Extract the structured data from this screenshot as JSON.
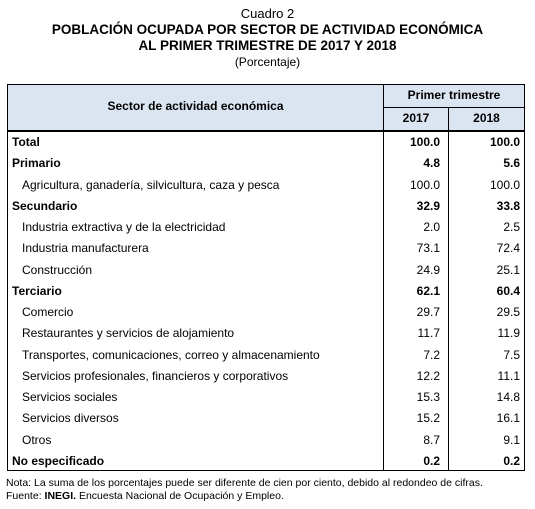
{
  "header": {
    "label": "Cuadro 2",
    "title_line1": "POBLACIÓN OCUPADA POR SECTOR DE ACTIVIDAD ECONÓMICA",
    "title_line2": "AL PRIMER TRIMESTRE DE 2017 Y 2018",
    "subtitle": "(Porcentaje)"
  },
  "table": {
    "column_header": "Sector de actividad económica",
    "group_header": "Primer trimestre",
    "years": [
      "2017",
      "2018"
    ],
    "rows": [
      {
        "label": "Total",
        "bold": true,
        "values": [
          "100.0",
          "100.0"
        ]
      },
      {
        "label": "Primario",
        "bold": true,
        "values": [
          "4.8",
          "5.6"
        ]
      },
      {
        "label": "Agricultura, ganadería, silvicultura, caza y pesca",
        "bold": false,
        "values": [
          "100.0",
          "100.0"
        ]
      },
      {
        "label": "Secundario",
        "bold": true,
        "values": [
          "32.9",
          "33.8"
        ]
      },
      {
        "label": "Industria extractiva y de la electricidad",
        "bold": false,
        "values": [
          "2.0",
          "2.5"
        ]
      },
      {
        "label": "Industria manufacturera",
        "bold": false,
        "values": [
          "73.1",
          "72.4"
        ]
      },
      {
        "label": "Construcción",
        "bold": false,
        "values": [
          "24.9",
          "25.1"
        ]
      },
      {
        "label": "Terciario",
        "bold": true,
        "values": [
          "62.1",
          "60.4"
        ]
      },
      {
        "label": "Comercio",
        "bold": false,
        "values": [
          "29.7",
          "29.5"
        ]
      },
      {
        "label": "Restaurantes y servicios de alojamiento",
        "bold": false,
        "values": [
          "11.7",
          "11.9"
        ]
      },
      {
        "label": "Transportes, comunicaciones, correo y almacenamiento",
        "bold": false,
        "values": [
          "7.2",
          "7.5"
        ]
      },
      {
        "label": "Servicios profesionales, financieros y corporativos",
        "bold": false,
        "values": [
          "12.2",
          "11.1"
        ]
      },
      {
        "label": "Servicios sociales",
        "bold": false,
        "values": [
          "15.3",
          "14.8"
        ]
      },
      {
        "label": "Servicios diversos",
        "bold": false,
        "values": [
          "15.2",
          "16.1"
        ]
      },
      {
        "label": "Otros",
        "bold": false,
        "values": [
          "8.7",
          "9.1"
        ]
      },
      {
        "label": "No especificado",
        "bold": true,
        "values": [
          "0.2",
          "0.2"
        ]
      }
    ]
  },
  "footer": {
    "note": "Nota: La suma de los porcentajes puede ser diferente de cien por ciento, debido al redondeo de cifras.",
    "source_label": "Fuente:",
    "source_bold": "INEGI.",
    "source_text": "Encuesta Nacional de Ocupación y Empleo."
  }
}
